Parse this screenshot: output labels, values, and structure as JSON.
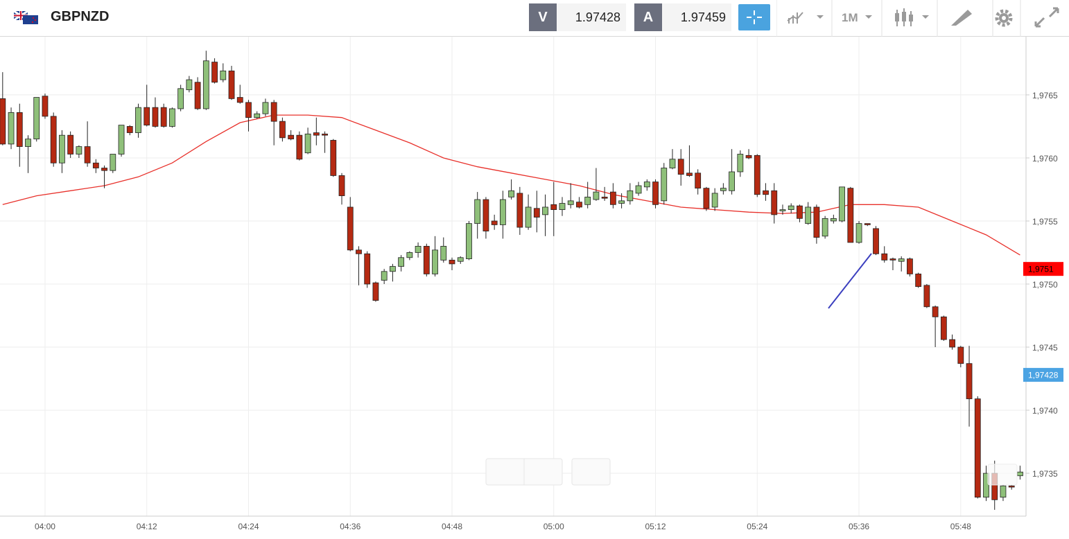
{
  "header": {
    "symbol": "GBPNZD",
    "bid_label": "V",
    "bid": "1.97428",
    "ask_label": "A",
    "ask": "1.97459",
    "timeframe": "1M"
  },
  "chart_data": {
    "type": "candlestick",
    "categories": [
      null,
      null,
      null,
      null,
      null,
      "04:00",
      null,
      null,
      null,
      null,
      null,
      null,
      null,
      null,
      null,
      null,
      null,
      "04:12",
      null,
      null,
      null,
      null,
      null,
      null,
      null,
      null,
      null,
      null,
      null,
      "04:24",
      null,
      null,
      null,
      null,
      null,
      null,
      null,
      null,
      null,
      null,
      null,
      "04:36",
      null,
      null,
      null,
      null,
      null,
      null,
      null,
      null,
      null,
      null,
      null,
      "04:48",
      null,
      null,
      null,
      null,
      null,
      null,
      null,
      null,
      null,
      null,
      null,
      "05:00",
      null,
      null,
      null,
      null,
      null,
      null,
      null,
      null,
      null,
      null,
      null,
      "05:12",
      null,
      null,
      null,
      null,
      null,
      null,
      null,
      null,
      null,
      null,
      null,
      "05:24",
      null,
      null,
      null,
      null,
      null,
      null,
      null,
      null,
      null,
      null,
      null,
      "05:36",
      null,
      null,
      null,
      null,
      null,
      null,
      null,
      null,
      null,
      null,
      null,
      "05:48",
      null,
      null,
      null,
      null,
      null,
      null,
      null
    ],
    "open": [
      1.97647,
      1.97611,
      1.97636,
      1.97609,
      1.97615,
      1.97649,
      1.97633,
      1.97596,
      1.97618,
      1.97603,
      1.97609,
      1.97596,
      1.97592,
      1.9759,
      1.97603,
      1.97625,
      1.9762,
      1.9764,
      1.9764,
      1.9764,
      1.97625,
      1.97639,
      1.97654,
      1.9766,
      1.97639,
      1.97676,
      1.97662,
      1.97669,
      1.97648,
      1.97644,
      1.97632,
      1.97635,
      1.97644,
      1.97629,
      1.97618,
      1.97618,
      1.97604,
      1.9762,
      1.97619,
      1.97614,
      1.97586,
      1.97561,
      1.97527,
      1.97524,
      1.97501,
      1.97503,
      1.9751,
      1.97514,
      1.97521,
      1.97525,
      1.9753,
      1.97508,
      1.97519,
      1.97519,
      1.97518,
      1.9752,
      1.97548,
      1.97567,
      1.9755,
      1.97547,
      1.97569,
      1.97572,
      1.97545,
      1.9756,
      1.97555,
      1.97563,
      1.97559,
      1.97563,
      1.97565,
      1.97563,
      1.97567,
      1.97569,
      1.97573,
      1.97564,
      1.97566,
      1.97572,
      1.97577,
      1.97581,
      1.97566,
      1.97592,
      1.97599,
      1.97588,
      1.97588,
      1.97576,
      1.97561,
      1.97574,
      1.97574,
      1.97589,
      1.97602,
      1.97602,
      1.97574,
      1.97574,
      1.97558,
      1.97559,
      1.97562,
      1.97548,
      1.97561,
      1.97538,
      1.9755,
      1.9755,
      1.97576,
      1.97533,
      1.97548,
      1.97544,
      1.97524,
      1.9752,
      1.97518,
      1.9752,
      1.97508,
      1.97499,
      1.97482,
      1.97474,
      1.97456,
      1.9745,
      1.97437,
      1.97409,
      1.97331,
      1.9735,
      1.97331,
      1.9734,
      1.97348
    ],
    "high": [
      1.97668,
      1.9764,
      1.97643,
      1.97618,
      1.97648,
      1.97651,
      1.97636,
      1.97622,
      1.97621,
      1.9761,
      1.97629,
      1.97599,
      1.97594,
      1.97603,
      1.97626,
      1.97626,
      1.97643,
      1.97658,
      1.97648,
      1.97643,
      1.9764,
      1.97658,
      1.97665,
      1.97664,
      1.97685,
      1.97679,
      1.97675,
      1.97673,
      1.97658,
      1.97646,
      1.97637,
      1.97647,
      1.97646,
      1.97632,
      1.97622,
      1.97621,
      1.97624,
      1.97632,
      1.97621,
      1.97615,
      1.97588,
      1.97569,
      1.9753,
      1.97526,
      1.97502,
      1.97512,
      1.97516,
      1.97523,
      1.97526,
      1.97533,
      1.97532,
      1.97538,
      1.97537,
      1.97521,
      1.97522,
      1.9755,
      1.97573,
      1.97569,
      1.97555,
      1.97574,
      1.97583,
      1.97577,
      1.97571,
      1.97574,
      1.97571,
      1.97581,
      1.97569,
      1.9758,
      1.97569,
      1.97581,
      1.97592,
      1.97577,
      1.9758,
      1.97572,
      1.9758,
      1.97581,
      1.97583,
      1.97583,
      1.97596,
      1.97607,
      1.97607,
      1.9761,
      1.97591,
      1.97577,
      1.97576,
      1.9758,
      1.97607,
      1.97606,
      1.97607,
      1.97603,
      1.9758,
      1.9758,
      1.97563,
      1.97564,
      1.97563,
      1.97565,
      1.97563,
      1.97554,
      1.97555,
      1.97577,
      1.97577,
      1.9755,
      1.97548,
      1.97546,
      1.9753,
      1.97521,
      1.97522,
      1.97521,
      1.97509,
      1.975,
      1.97483,
      1.97475,
      1.9746,
      1.97451,
      1.97451,
      1.97411,
      1.97356,
      1.9736,
      1.97341,
      1.97341,
      1.97356
    ],
    "low": [
      1.9761,
      1.97607,
      1.97593,
      1.97588,
      1.97613,
      1.97631,
      1.97593,
      1.97588,
      1.976,
      1.976,
      1.97593,
      1.97588,
      1.97576,
      1.97588,
      1.97601,
      1.97618,
      1.97616,
      1.97625,
      1.97624,
      1.97624,
      1.97624,
      1.97637,
      1.97652,
      1.97638,
      1.97638,
      1.97659,
      1.9766,
      1.97646,
      1.97643,
      1.97621,
      1.97631,
      1.97633,
      1.9761,
      1.97613,
      1.97614,
      1.97598,
      1.97603,
      1.9761,
      1.97604,
      1.97585,
      1.97563,
      1.97526,
      1.97499,
      1.97497,
      1.97486,
      1.975,
      1.97502,
      1.9751,
      1.97519,
      1.97521,
      1.97506,
      1.97506,
      1.97517,
      1.97511,
      1.97516,
      1.97519,
      1.97536,
      1.97536,
      1.97543,
      1.97536,
      1.97567,
      1.97539,
      1.97543,
      1.97541,
      1.97538,
      1.97538,
      1.97554,
      1.9756,
      1.9756,
      1.9756,
      1.97566,
      1.97566,
      1.9756,
      1.9756,
      1.97563,
      1.9757,
      1.97574,
      1.9756,
      1.97563,
      1.97591,
      1.97578,
      1.97585,
      1.97571,
      1.97558,
      1.97558,
      1.97571,
      1.97571,
      1.97585,
      1.97599,
      1.97569,
      1.97566,
      1.97548,
      1.97555,
      1.97556,
      1.97549,
      1.97547,
      1.97532,
      1.97536,
      1.97548,
      1.97549,
      1.97533,
      1.97532,
      1.97546,
      1.97523,
      1.97517,
      1.97511,
      1.9751,
      1.97506,
      1.97497,
      1.97481,
      1.9745,
      1.97455,
      1.97448,
      1.97434,
      1.97387,
      1.9733,
      1.97328,
      1.97321,
      1.97328,
      1.97337,
      1.97345
    ],
    "close": [
      1.97611,
      1.97636,
      1.97609,
      1.97615,
      1.97648,
      1.97633,
      1.97596,
      1.97618,
      1.97603,
      1.97609,
      1.97596,
      1.97592,
      1.9759,
      1.97603,
      1.97626,
      1.9762,
      1.9764,
      1.97626,
      1.97625,
      1.97625,
      1.97639,
      1.97655,
      1.97662,
      1.97639,
      1.97677,
      1.9766,
      1.97669,
      1.97647,
      1.97644,
      1.97632,
      1.97635,
      1.97644,
      1.97629,
      1.97616,
      1.97615,
      1.97599,
      1.97619,
      1.97618,
      1.97618,
      1.97586,
      1.9757,
      1.97527,
      1.97524,
      1.975,
      1.97487,
      1.9751,
      1.97514,
      1.97521,
      1.97525,
      1.9753,
      1.97508,
      1.97527,
      1.9753,
      1.97516,
      1.97521,
      1.97548,
      1.97567,
      1.97542,
      1.97547,
      1.97567,
      1.97574,
      1.97545,
      1.97561,
      1.97553,
      1.97561,
      1.97559,
      1.97564,
      1.97566,
      1.97561,
      1.97569,
      1.97573,
      1.97568,
      1.97563,
      1.97566,
      1.97574,
      1.97578,
      1.97581,
      1.97563,
      1.97592,
      1.97599,
      1.97587,
      1.97586,
      1.97576,
      1.9756,
      1.97572,
      1.97576,
      1.97589,
      1.97603,
      1.976,
      1.97571,
      1.97571,
      1.97555,
      1.97559,
      1.97562,
      1.97552,
      1.97561,
      1.97537,
      1.97552,
      1.97552,
      1.97577,
      1.97533,
      1.97548,
      1.97547,
      1.97524,
      1.97519,
      1.97519,
      1.9752,
      1.97508,
      1.97498,
      1.97482,
      1.97474,
      1.97456,
      1.9745,
      1.97437,
      1.97409,
      1.97331,
      1.9735,
      1.97329,
      1.9734,
      1.97339,
      1.97351
    ],
    "up_color": "#8fc07a",
    "down_color": "#b52a12",
    "moving_average": {
      "color": "#e8302a",
      "x": [
        0,
        4,
        8,
        12,
        16,
        20,
        24,
        28,
        32,
        36,
        40,
        44,
        48,
        52,
        56,
        60,
        64,
        68,
        72,
        76,
        80,
        84,
        88,
        92,
        96,
        100,
        104,
        108,
        112,
        116,
        120
      ],
      "values": [
        1.97563,
        1.9757,
        1.97574,
        1.97578,
        1.97585,
        1.97596,
        1.97613,
        1.97628,
        1.97634,
        1.97634,
        1.97632,
        1.97622,
        1.97612,
        1.976,
        1.97593,
        1.97588,
        1.97583,
        1.97578,
        1.97571,
        1.97566,
        1.97561,
        1.97559,
        1.97557,
        1.97556,
        1.97557,
        1.97563,
        1.97563,
        1.97561,
        1.9755,
        1.97539,
        1.97523
      ]
    },
    "price_markers": [
      {
        "value": 1.97512,
        "label": "1,9751",
        "color": "#ff0000"
      },
      {
        "value": 1.97428,
        "label": "1,97428",
        "color": "#4ba3e3"
      }
    ],
    "ylim": [
      1.97316,
      1.97695
    ],
    "yticks": [
      {
        "value": 1.9735,
        "label": "1,9735"
      },
      {
        "value": 1.974,
        "label": "1,9740"
      },
      {
        "value": 1.9745,
        "label": "1,9745"
      },
      {
        "value": 1.975,
        "label": "1,9750"
      },
      {
        "value": 1.9755,
        "label": "1,9755"
      },
      {
        "value": 1.976,
        "label": "1,9760"
      },
      {
        "value": 1.9765,
        "label": "1,9765"
      }
    ],
    "grid": true
  }
}
